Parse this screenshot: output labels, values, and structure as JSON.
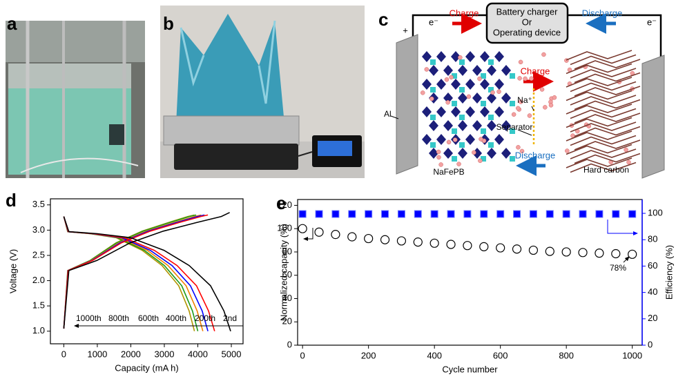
{
  "panel_labels": [
    "a",
    "b",
    "c",
    "d",
    "e"
  ],
  "diagram": {
    "device": [
      "Battery charger",
      "Or",
      "Operating device"
    ],
    "top_charge": "Charge",
    "top_discharge": "Discharge",
    "electron_left": "e⁻",
    "electron_right": "e⁻",
    "plus": "+",
    "collector": "Al",
    "ion": "Na⁺",
    "mid_charge": "Charge",
    "separator": "Separator",
    "mid_discharge": "Discharge",
    "cathode": "NaFePB",
    "anode": "Hard carbon"
  },
  "chart_data": [
    {
      "type": "line",
      "xlabel": "Capacity (mA h)",
      "ylabel": "Voltage (V)",
      "xlim": [
        -400,
        5350
      ],
      "ylim": [
        0.75,
        3.62
      ],
      "xticks": [
        0,
        1000,
        2000,
        3000,
        4000,
        5000
      ],
      "yticks": [
        {
          "value": 1,
          "label": "1.0"
        },
        1.5,
        {
          "value": 2,
          "label": "2.0"
        },
        2.5,
        {
          "value": 3,
          "label": "3.0"
        },
        3.5
      ],
      "series": [
        {
          "name": "1000th",
          "color": "#b09400",
          "x": [
            0,
            115,
            780,
            1560,
            2340,
            3120,
            3700,
            3900,
            null,
            0,
            115,
            780,
            1560,
            2340,
            2930,
            3430,
            3740,
            3900
          ],
          "values": [
            1.05,
            2.2,
            2.4,
            2.75,
            2.98,
            3.15,
            3.27,
            3.3,
            null,
            3.27,
            2.97,
            2.93,
            2.85,
            2.6,
            2.3,
            1.9,
            1.4,
            1.0
          ]
        },
        {
          "name": "800th",
          "color": "#1a9a1a",
          "x": [
            0,
            120,
            790,
            1580,
            2370,
            3160,
            3750,
            3950,
            null,
            0,
            120,
            800,
            1600,
            2400,
            3000,
            3520,
            3840,
            4000
          ],
          "values": [
            1.05,
            2.2,
            2.4,
            2.75,
            2.98,
            3.15,
            3.27,
            3.3,
            null,
            3.27,
            2.97,
            2.93,
            2.85,
            2.6,
            2.3,
            1.9,
            1.4,
            1.0
          ]
        },
        {
          "name": "600th",
          "color": "#f08000",
          "x": [
            0,
            125,
            820,
            1640,
            2460,
            3280,
            3900,
            4100,
            null,
            0,
            125,
            830,
            1660,
            2490,
            3110,
            3650,
            3980,
            4150
          ],
          "values": [
            1.05,
            2.2,
            2.4,
            2.75,
            2.98,
            3.15,
            3.27,
            3.3,
            null,
            3.27,
            2.97,
            2.93,
            2.85,
            2.6,
            2.3,
            1.9,
            1.4,
            1.0
          ]
        },
        {
          "name": "400th",
          "color": "#0000ff",
          "x": [
            0,
            125,
            840,
            1680,
            2520,
            3360,
            3990,
            4200,
            null,
            0,
            130,
            860,
            1720,
            2580,
            3230,
            3780,
            4130,
            4300
          ],
          "values": [
            1.05,
            2.2,
            2.4,
            2.75,
            2.98,
            3.15,
            3.27,
            3.3,
            null,
            3.27,
            2.97,
            2.93,
            2.85,
            2.6,
            2.3,
            1.9,
            1.4,
            1.0
          ]
        },
        {
          "name": "200th",
          "color": "#ff0000",
          "x": [
            0,
            130,
            860,
            1720,
            2580,
            3440,
            4090,
            4300,
            null,
            0,
            135,
            900,
            1800,
            2700,
            3380,
            3960,
            4320,
            4500
          ],
          "values": [
            1.05,
            2.2,
            2.4,
            2.75,
            2.98,
            3.15,
            3.27,
            3.3,
            null,
            3.27,
            2.97,
            2.93,
            2.85,
            2.6,
            2.3,
            1.9,
            1.4,
            1.0
          ]
        },
        {
          "name": "2nd",
          "color": "#000000",
          "x": [
            0,
            150,
            990,
            1980,
            2970,
            3960,
            4700,
            4950,
            null,
            0,
            150,
            1000,
            1990,
            2990,
            3740,
            4380,
            4780,
            4980
          ],
          "values": [
            1.05,
            2.2,
            2.4,
            2.75,
            2.98,
            3.15,
            3.27,
            3.35,
            null,
            3.27,
            2.97,
            2.93,
            2.85,
            2.6,
            2.3,
            1.9,
            1.4,
            1.0
          ]
        }
      ]
    },
    {
      "type": "scatter",
      "xlabel": "Cycle number",
      "ylabel": "Normalized capacity (%)",
      "y2label": "Efficiency (%)",
      "annotation": "78%",
      "xlim": [
        -15,
        1030
      ],
      "ylim": [
        0,
        125
      ],
      "y2lim": [
        0,
        110.5
      ],
      "xticks": [
        0,
        200,
        400,
        600,
        800,
        1000
      ],
      "yticks": [
        0,
        20,
        40,
        60,
        80,
        100,
        120
      ],
      "y2ticks": [
        0,
        20,
        40,
        60,
        80,
        100
      ],
      "x": [
        0,
        50,
        100,
        150,
        200,
        250,
        300,
        350,
        400,
        450,
        500,
        550,
        600,
        650,
        700,
        750,
        800,
        850,
        900,
        950,
        1000
      ],
      "series": [
        {
          "color": "#000000",
          "values": [
            100,
            97,
            95,
            93,
            91.5,
            90.5,
            89.5,
            88.5,
            87.5,
            86.5,
            85.5,
            84.5,
            83.5,
            82.5,
            81.5,
            80.5,
            80,
            79.5,
            79,
            78.5,
            78
          ]
        },
        {
          "color": "#0000ff",
          "axis": "y2",
          "values": [
            99.5,
            99.5,
            99.5,
            99.5,
            99.5,
            99.5,
            99.5,
            99.5,
            99.5,
            99.5,
            99.5,
            99.5,
            99.5,
            99.5,
            99.5,
            99.5,
            99.5,
            99.5,
            99.5,
            99.5,
            99.5
          ]
        }
      ]
    }
  ]
}
